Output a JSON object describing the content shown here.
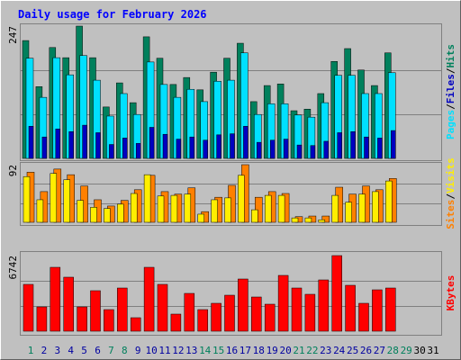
{
  "title": "Daily usage for February 2026",
  "separator": "/",
  "chart_data": [
    {
      "type": "bar",
      "ylim": [
        0,
        247
      ],
      "yticks": [
        247
      ],
      "series": [
        {
          "name": "Hits",
          "color": "#00805C",
          "values": [
            220,
            134,
            207,
            188,
            247,
            188,
            96,
            141,
            104,
            227,
            187,
            138,
            151,
            128,
            161,
            187,
            215,
            106,
            136,
            139,
            89,
            92,
            121,
            181,
            205,
            165,
            136,
            197,
            null,
            null,
            null
          ]
        },
        {
          "name": "Files",
          "color": "#0000C0",
          "values": [
            60,
            40,
            55,
            50,
            62,
            48,
            26,
            38,
            28,
            58,
            45,
            36,
            40,
            34,
            44,
            46,
            60,
            30,
            34,
            36,
            25,
            24,
            32,
            48,
            50,
            40,
            38,
            52,
            null,
            null,
            null
          ]
        },
        {
          "name": "Pages",
          "color": "#00E0FF",
          "values": [
            187,
            114,
            188,
            156,
            192,
            146,
            79,
            121,
            82,
            180,
            138,
            114,
            129,
            106,
            144,
            146,
            197,
            82,
            102,
            102,
            81,
            77,
            104,
            155,
            155,
            121,
            121,
            160,
            null,
            null,
            null
          ]
        }
      ]
    },
    {
      "type": "bar",
      "ylim": [
        0,
        92
      ],
      "yticks": [
        92
      ],
      "series": [
        {
          "name": "Visits",
          "color": "#FFEE00",
          "values": [
            73,
            36,
            78,
            68,
            35,
            24,
            22,
            29,
            46,
            76,
            42,
            43,
            45,
            13,
            36,
            39,
            75,
            20,
            43,
            43,
            7,
            7,
            4,
            43,
            32,
            45,
            49,
            66,
            null,
            null,
            null
          ]
        },
        {
          "name": "Sites",
          "color": "#FF8000",
          "values": [
            80,
            49,
            85,
            76,
            58,
            36,
            26,
            35,
            52,
            75,
            49,
            45,
            55,
            17,
            40,
            59,
            92,
            40,
            49,
            46,
            9,
            10,
            10,
            56,
            45,
            58,
            52,
            70,
            null,
            null,
            null
          ]
        }
      ]
    },
    {
      "type": "bar",
      "ylim": [
        0,
        6742
      ],
      "yticks": [
        6742
      ],
      "series": [
        {
          "name": "KBytes",
          "color": "#FF0000",
          "values": [
            4174,
            2167,
            5698,
            4816,
            2167,
            3612,
            1926,
            3852,
            1204,
            5698,
            4174,
            1525,
            3371,
            1926,
            2488,
            3210,
            4655,
            3050,
            2408,
            4976,
            3852,
            3291,
            4575,
            6742,
            4093,
            2488,
            3692,
            3852,
            null,
            null,
            null
          ]
        }
      ],
      "categories": [
        "1",
        "2",
        "3",
        "4",
        "5",
        "6",
        "7",
        "8",
        "9",
        "10",
        "11",
        "12",
        "13",
        "14",
        "15",
        "16",
        "17",
        "18",
        "19",
        "20",
        "21",
        "22",
        "23",
        "24",
        "25",
        "26",
        "27",
        "28",
        "29",
        "30",
        "31"
      ],
      "label_colors": [
        "#00805C",
        "#0000A0",
        "#0000A0",
        "#0000A0",
        "#0000A0",
        "#0000A0",
        "#00805C",
        "#00805C",
        "#0000A0",
        "#0000A0",
        "#0000A0",
        "#0000A0",
        "#0000A0",
        "#00805C",
        "#00805C",
        "#0000A0",
        "#0000A0",
        "#0000A0",
        "#0000A0",
        "#0000A0",
        "#00805C",
        "#00805C",
        "#0000A0",
        "#0000A0",
        "#0000A0",
        "#0000A0",
        "#0000A0",
        "#00805C",
        "#00805C",
        "#000000",
        "#000000"
      ]
    }
  ]
}
